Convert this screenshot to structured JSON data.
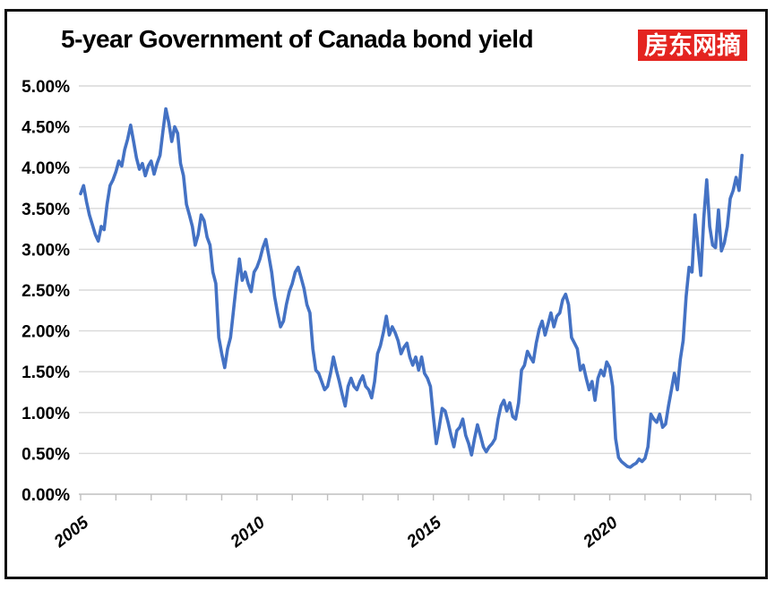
{
  "header": {
    "title": "5-year Government of Canada bond yield",
    "badge": {
      "text": "房东网摘",
      "bg_color": "#e42420",
      "text_color": "#ffffff"
    }
  },
  "frame": {
    "border_color": "#111111",
    "background": "#ffffff"
  },
  "chart_data": {
    "type": "line",
    "title": "5-year Government of Canada bond yield",
    "series_name": "5-year Government of Canada bond yield",
    "line_color": "#4472c4",
    "grid_color": "#d9d9d9",
    "axis_color": "#bfbfbf",
    "legend": "none",
    "grid": "horizontal",
    "ylim": [
      0,
      5
    ],
    "y_tick_step_pct": 0.5,
    "y_ticks": [
      "5.00%",
      "4.50%",
      "4.00%",
      "3.50%",
      "3.00%",
      "2.50%",
      "2.00%",
      "1.50%",
      "1.00%",
      "0.50%",
      "0.00%"
    ],
    "x_range": [
      2005,
      2024
    ],
    "x_axis_ticks": [
      2005,
      2010,
      2015,
      2020
    ],
    "x_minor_tick_every_years": 1,
    "x_start": "2005-01",
    "x_end": "2023-10",
    "x_step_months": 1,
    "values_pct": [
      3.68,
      3.78,
      3.58,
      3.42,
      3.3,
      3.18,
      3.1,
      3.28,
      3.24,
      3.55,
      3.78,
      3.85,
      3.95,
      4.08,
      4.02,
      4.22,
      4.35,
      4.52,
      4.32,
      4.12,
      3.98,
      4.05,
      3.9,
      4.02,
      4.08,
      3.92,
      4.05,
      4.15,
      4.45,
      4.72,
      4.55,
      4.32,
      4.5,
      4.42,
      4.05,
      3.9,
      3.55,
      3.42,
      3.28,
      3.05,
      3.18,
      3.42,
      3.35,
      3.15,
      3.05,
      2.72,
      2.58,
      1.92,
      1.72,
      1.55,
      1.78,
      1.92,
      2.25,
      2.58,
      2.88,
      2.62,
      2.72,
      2.58,
      2.48,
      2.72,
      2.78,
      2.88,
      3.02,
      3.12,
      2.92,
      2.72,
      2.42,
      2.22,
      2.05,
      2.12,
      2.32,
      2.48,
      2.58,
      2.72,
      2.78,
      2.65,
      2.52,
      2.32,
      2.22,
      1.78,
      1.52,
      1.48,
      1.38,
      1.28,
      1.32,
      1.48,
      1.68,
      1.52,
      1.38,
      1.22,
      1.08,
      1.32,
      1.42,
      1.32,
      1.28,
      1.38,
      1.45,
      1.32,
      1.28,
      1.18,
      1.38,
      1.72,
      1.82,
      1.98,
      2.18,
      1.95,
      2.05,
      1.98,
      1.88,
      1.72,
      1.8,
      1.85,
      1.68,
      1.58,
      1.68,
      1.52,
      1.68,
      1.48,
      1.42,
      1.32,
      0.95,
      0.62,
      0.82,
      1.05,
      1.02,
      0.88,
      0.72,
      0.58,
      0.78,
      0.82,
      0.92,
      0.72,
      0.62,
      0.48,
      0.68,
      0.85,
      0.72,
      0.58,
      0.52,
      0.58,
      0.62,
      0.68,
      0.92,
      1.08,
      1.15,
      1.02,
      1.12,
      0.95,
      0.92,
      1.12,
      1.52,
      1.58,
      1.75,
      1.68,
      1.62,
      1.85,
      2.02,
      2.12,
      1.95,
      2.08,
      2.22,
      2.05,
      2.18,
      2.22,
      2.38,
      2.45,
      2.32,
      1.92,
      1.85,
      1.78,
      1.52,
      1.58,
      1.42,
      1.28,
      1.38,
      1.15,
      1.42,
      1.52,
      1.45,
      1.62,
      1.55,
      1.32,
      0.68,
      0.45,
      0.4,
      0.37,
      0.34,
      0.33,
      0.36,
      0.38,
      0.43,
      0.4,
      0.44,
      0.58,
      0.98,
      0.92,
      0.88,
      0.98,
      0.82,
      0.86,
      1.08,
      1.28,
      1.48,
      1.28,
      1.65,
      1.88,
      2.42,
      2.78,
      2.72,
      3.42,
      3.05,
      2.68,
      3.38,
      3.85,
      3.28,
      3.05,
      3.02,
      3.48,
      2.98,
      3.08,
      3.28,
      3.62,
      3.72,
      3.88,
      3.72,
      4.15
    ]
  }
}
